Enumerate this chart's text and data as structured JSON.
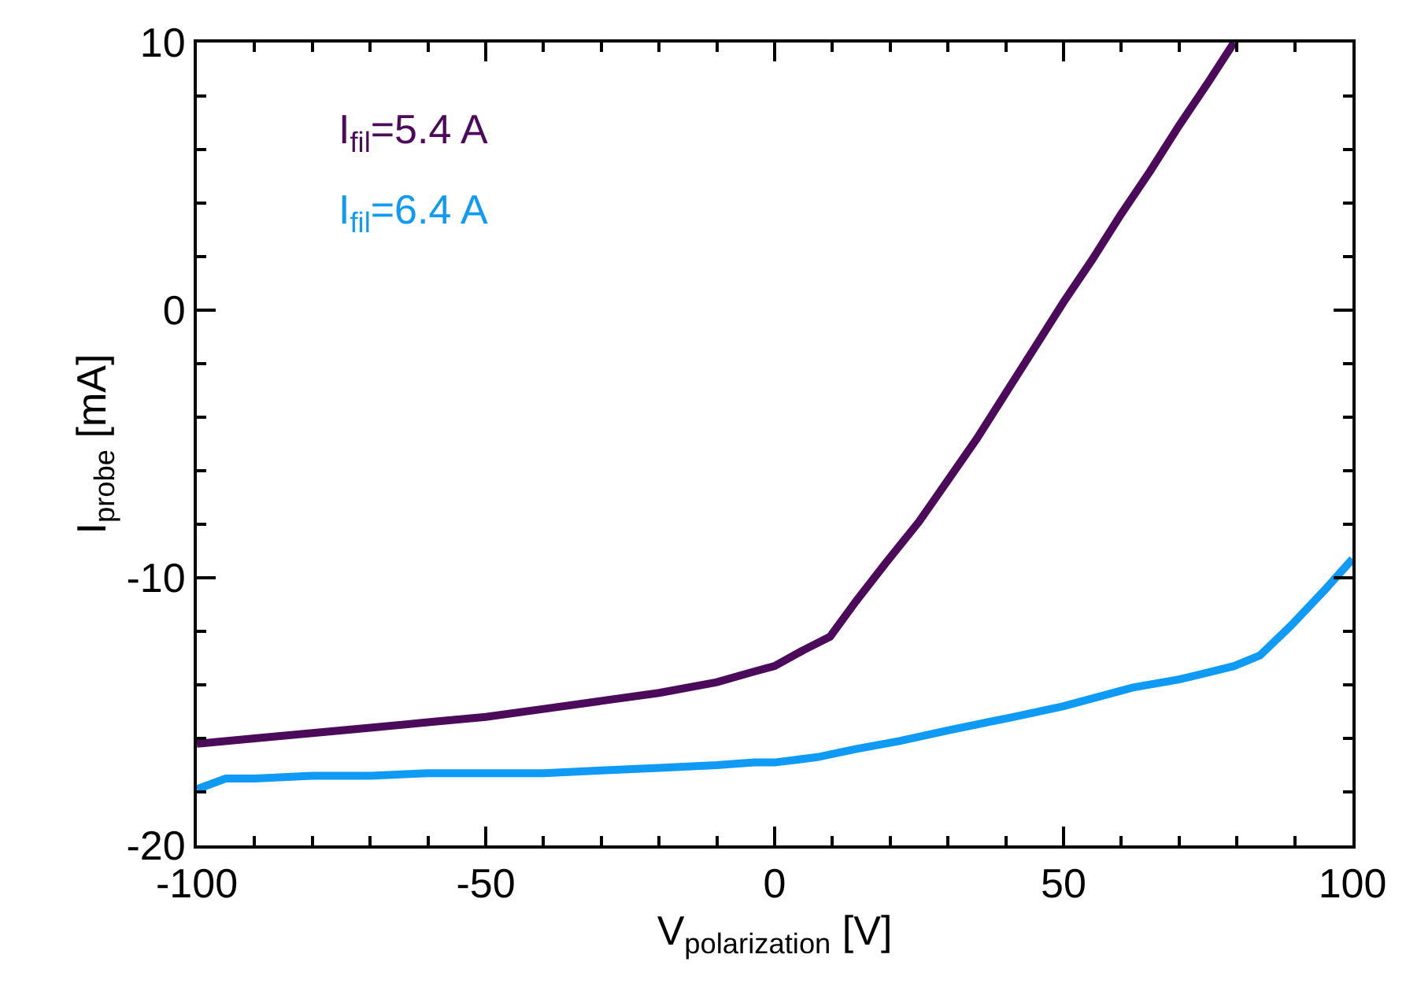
{
  "chart_data": {
    "type": "line",
    "xlabel": "V$_{polarization}$ [V]",
    "ylabel": "I$_{probe}$ [mA]",
    "xlim": [
      -100,
      100
    ],
    "xticks": [
      -100,
      -50,
      0,
      50,
      100
    ],
    "ylim": [
      -20,
      10
    ],
    "yticks": [
      -20,
      -10,
      0,
      10
    ],
    "legend": false,
    "marker": "none",
    "line_style": "solid",
    "series": [
      {
        "name": "I$_{fil}$=5.4 A",
        "color": "#4b0a5a",
        "x": [
          -100,
          -90,
          -80,
          -70,
          -60,
          -50,
          -40,
          -30,
          -20,
          -10,
          -3.5,
          0,
          5,
          9.6,
          14,
          19.4,
          25,
          29.2,
          35,
          40,
          45,
          50,
          55,
          60,
          65,
          70,
          75,
          79.5
        ],
        "values": [
          -16.2,
          -16,
          -15.8,
          -15.6,
          -15.4,
          -15.2,
          -14.9,
          -14.6,
          -14.3,
          -13.9,
          -13.5,
          -13.3,
          -12.7,
          -12.2,
          -10.9,
          -9.4,
          -7.9,
          -6.6,
          -4.8,
          -3.1,
          -1.4,
          0.3,
          1.9,
          3.6,
          5.2,
          6.9,
          8.5,
          10
        ]
      },
      {
        "name": "I$_{fil}$=6.4 A",
        "color": "#0f9af5",
        "x": [
          -100,
          -95,
          -90,
          -80,
          -70,
          -60,
          -50,
          -40,
          -30,
          -20,
          -10,
          -3.5,
          0,
          7.4,
          14,
          21.6,
          30,
          41.3,
          50,
          62,
          70,
          79.5,
          84,
          89.3,
          95,
          100
        ],
        "values": [
          -17.9,
          -17.5,
          -17.5,
          -17.4,
          -17.4,
          -17.3,
          -17.3,
          -17.3,
          -17.2,
          -17.1,
          -17,
          -16.9,
          -16.9,
          -16.7,
          -16.4,
          -16.1,
          -15.7,
          -15.2,
          -14.8,
          -14.1,
          -13.8,
          -13.3,
          -12.9,
          -11.8,
          -10.5,
          -9.3
        ]
      }
    ]
  }
}
